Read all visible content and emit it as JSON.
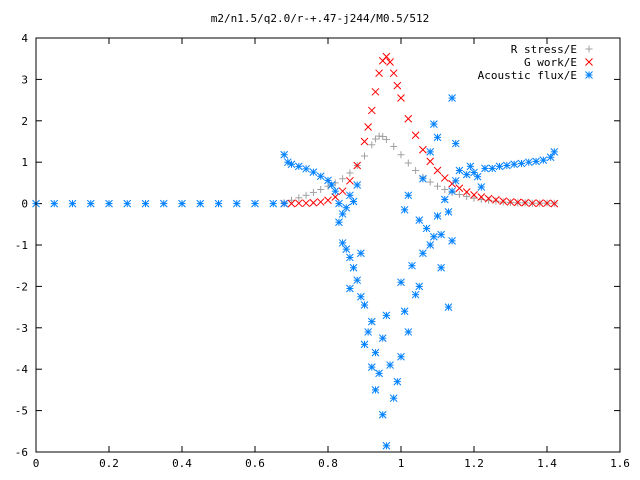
{
  "chart_data": {
    "type": "scatter",
    "title": "m2/n1.5/q2.0/r-+.47-j244/M0.5/512",
    "xlabel": "",
    "ylabel": "",
    "xlim": [
      0,
      1.6
    ],
    "ylim": [
      -6,
      4
    ],
    "x_ticks": [
      "0",
      "0.2",
      "0.4",
      "0.6",
      "0.8",
      "1",
      "1.2",
      "1.4",
      "1.6"
    ],
    "y_ticks": [
      "4",
      "3",
      "2",
      "1",
      "0",
      "-1",
      "-2",
      "-3",
      "-4",
      "-5",
      "-6"
    ],
    "legend_position": "top-right",
    "grid": false,
    "series": [
      {
        "name": "R stress/E",
        "marker": "plus",
        "color": "#a0a0a0",
        "points": [
          [
            0.68,
            0.02
          ],
          [
            0.7,
            0.08
          ],
          [
            0.72,
            0.14
          ],
          [
            0.74,
            0.2
          ],
          [
            0.76,
            0.27
          ],
          [
            0.78,
            0.34
          ],
          [
            0.8,
            0.42
          ],
          [
            0.82,
            0.5
          ],
          [
            0.84,
            0.6
          ],
          [
            0.86,
            0.74
          ],
          [
            0.88,
            0.92
          ],
          [
            0.9,
            1.15
          ],
          [
            0.92,
            1.42
          ],
          [
            0.93,
            1.56
          ],
          [
            0.94,
            1.63
          ],
          [
            0.95,
            1.62
          ],
          [
            0.96,
            1.55
          ],
          [
            0.98,
            1.38
          ],
          [
            1.0,
            1.18
          ],
          [
            1.02,
            0.98
          ],
          [
            1.04,
            0.8
          ],
          [
            1.06,
            0.64
          ],
          [
            1.08,
            0.52
          ],
          [
            1.1,
            0.42
          ],
          [
            1.12,
            0.34
          ],
          [
            1.14,
            0.27
          ],
          [
            1.16,
            0.22
          ],
          [
            1.18,
            0.17
          ],
          [
            1.2,
            0.13
          ],
          [
            1.22,
            0.1
          ],
          [
            1.24,
            0.08
          ],
          [
            1.26,
            0.06
          ],
          [
            1.28,
            0.04
          ],
          [
            1.3,
            0.03
          ],
          [
            1.32,
            0.02
          ],
          [
            1.34,
            0.02
          ],
          [
            1.36,
            0.01
          ],
          [
            1.38,
            0.01
          ],
          [
            1.4,
            0.01
          ],
          [
            1.42,
            0.01
          ]
        ]
      },
      {
        "name": "G work/E",
        "marker": "cross",
        "color": "#ff0000",
        "points": [
          [
            0.68,
            0.0
          ],
          [
            0.7,
            0.0
          ],
          [
            0.72,
            0.01
          ],
          [
            0.74,
            0.01
          ],
          [
            0.76,
            0.02
          ],
          [
            0.78,
            0.04
          ],
          [
            0.8,
            0.08
          ],
          [
            0.82,
            0.16
          ],
          [
            0.84,
            0.3
          ],
          [
            0.86,
            0.55
          ],
          [
            0.88,
            0.92
          ],
          [
            0.9,
            1.5
          ],
          [
            0.91,
            1.85
          ],
          [
            0.92,
            2.25
          ],
          [
            0.93,
            2.7
          ],
          [
            0.94,
            3.15
          ],
          [
            0.95,
            3.45
          ],
          [
            0.96,
            3.55
          ],
          [
            0.97,
            3.42
          ],
          [
            0.98,
            3.15
          ],
          [
            0.99,
            2.85
          ],
          [
            1.0,
            2.55
          ],
          [
            1.02,
            2.05
          ],
          [
            1.04,
            1.65
          ],
          [
            1.06,
            1.3
          ],
          [
            1.08,
            1.02
          ],
          [
            1.1,
            0.8
          ],
          [
            1.12,
            0.62
          ],
          [
            1.14,
            0.48
          ],
          [
            1.16,
            0.37
          ],
          [
            1.18,
            0.28
          ],
          [
            1.2,
            0.21
          ],
          [
            1.22,
            0.16
          ],
          [
            1.24,
            0.12
          ],
          [
            1.26,
            0.09
          ],
          [
            1.28,
            0.06
          ],
          [
            1.3,
            0.04
          ],
          [
            1.32,
            0.03
          ],
          [
            1.34,
            0.02
          ],
          [
            1.36,
            0.01
          ],
          [
            1.38,
            0.01
          ],
          [
            1.4,
            0.01
          ],
          [
            1.42,
            0.0
          ]
        ]
      },
      {
        "name": "Acoustic flux/E",
        "marker": "star",
        "color": "#0080ff",
        "points": [
          [
            0.0,
            0.0
          ],
          [
            0.05,
            0.0
          ],
          [
            0.1,
            0.0
          ],
          [
            0.15,
            0.0
          ],
          [
            0.2,
            0.0
          ],
          [
            0.25,
            0.0
          ],
          [
            0.3,
            0.0
          ],
          [
            0.35,
            0.0
          ],
          [
            0.4,
            0.0
          ],
          [
            0.45,
            0.0
          ],
          [
            0.5,
            0.0
          ],
          [
            0.55,
            0.0
          ],
          [
            0.6,
            0.0
          ],
          [
            0.65,
            0.0
          ],
          [
            0.68,
            0.0
          ],
          [
            0.68,
            1.18
          ],
          [
            0.69,
            1.0
          ],
          [
            0.7,
            0.95
          ],
          [
            0.72,
            0.9
          ],
          [
            0.74,
            0.84
          ],
          [
            0.76,
            0.76
          ],
          [
            0.78,
            0.66
          ],
          [
            0.8,
            0.56
          ],
          [
            0.81,
            0.45
          ],
          [
            0.82,
            0.3
          ],
          [
            0.83,
            0.0
          ],
          [
            0.84,
            -0.25
          ],
          [
            0.85,
            -0.1
          ],
          [
            0.83,
            -0.45
          ],
          [
            0.84,
            -0.95
          ],
          [
            0.85,
            -1.1
          ],
          [
            0.86,
            -1.3
          ],
          [
            0.87,
            -1.55
          ],
          [
            0.86,
            -2.05
          ],
          [
            0.88,
            -1.85
          ],
          [
            0.89,
            -2.25
          ],
          [
            0.9,
            -2.45
          ],
          [
            0.89,
            -1.2
          ],
          [
            0.91,
            -3.1
          ],
          [
            0.9,
            -3.4
          ],
          [
            0.92,
            -2.85
          ],
          [
            0.93,
            -3.6
          ],
          [
            0.94,
            -4.1
          ],
          [
            0.92,
            -3.95
          ],
          [
            0.93,
            -4.5
          ],
          [
            0.95,
            -5.1
          ],
          [
            0.96,
            -5.85
          ],
          [
            0.95,
            -3.25
          ],
          [
            0.96,
            -2.7
          ],
          [
            0.97,
            -3.9
          ],
          [
            0.98,
            -4.7
          ],
          [
            0.99,
            -4.3
          ],
          [
            1.0,
            -3.7
          ],
          [
            1.01,
            -2.6
          ],
          [
            1.02,
            -3.1
          ],
          [
            1.0,
            -1.9
          ],
          [
            1.03,
            -1.5
          ],
          [
            1.04,
            -2.2
          ],
          [
            1.05,
            -2.0
          ],
          [
            1.06,
            -1.2
          ],
          [
            1.05,
            -0.4
          ],
          [
            1.07,
            -0.6
          ],
          [
            1.08,
            -1.0
          ],
          [
            1.09,
            -0.8
          ],
          [
            1.1,
            -0.3
          ],
          [
            1.11,
            -0.75
          ],
          [
            1.12,
            0.1
          ],
          [
            1.13,
            -0.2
          ],
          [
            1.14,
            0.3
          ],
          [
            1.11,
            -1.55
          ],
          [
            1.13,
            -2.5
          ],
          [
            1.14,
            -0.9
          ],
          [
            1.15,
            0.55
          ],
          [
            1.16,
            0.8
          ],
          [
            1.18,
            0.7
          ],
          [
            1.2,
            0.75
          ],
          [
            1.22,
            0.4
          ],
          [
            1.19,
            0.9
          ],
          [
            1.21,
            0.65
          ],
          [
            1.23,
            0.85
          ],
          [
            1.25,
            0.85
          ],
          [
            1.27,
            0.9
          ],
          [
            1.29,
            0.92
          ],
          [
            1.31,
            0.95
          ],
          [
            1.33,
            0.97
          ],
          [
            1.35,
            1.0
          ],
          [
            1.37,
            1.02
          ],
          [
            1.39,
            1.05
          ],
          [
            1.41,
            1.12
          ],
          [
            1.42,
            1.25
          ],
          [
            1.14,
            2.55
          ],
          [
            1.09,
            1.92
          ],
          [
            1.08,
            1.25
          ],
          [
            1.15,
            1.45
          ],
          [
            1.1,
            1.6
          ],
          [
            1.06,
            0.6
          ],
          [
            1.02,
            0.2
          ],
          [
            1.01,
            -0.15
          ],
          [
            0.86,
            0.2
          ],
          [
            0.88,
            0.45
          ],
          [
            0.87,
            0.05
          ]
        ]
      }
    ]
  }
}
